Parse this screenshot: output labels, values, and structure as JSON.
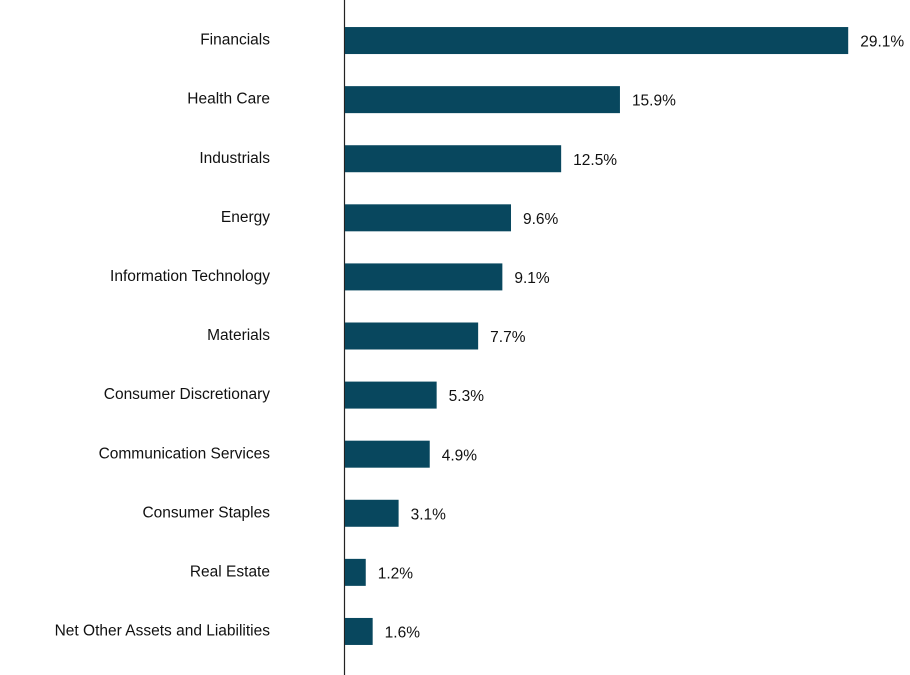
{
  "chart_data": {
    "type": "hbar",
    "categories": [
      "Financials",
      "Health Care",
      "Industrials",
      "Energy",
      "Information Technology",
      "Materials",
      "Consumer Discretionary",
      "Communication Services",
      "Consumer Staples",
      "Real Estate",
      "Net Other Assets and Liabilities"
    ],
    "values": [
      29.1,
      15.9,
      12.5,
      9.6,
      9.1,
      7.7,
      5.3,
      4.9,
      3.1,
      1.2,
      1.6
    ],
    "value_labels": [
      "29.1%",
      "15.9%",
      "12.5%",
      "9.6%",
      "9.1%",
      "7.7%",
      "5.3%",
      "4.9%",
      "3.1%",
      "1.2%",
      "1.6%"
    ],
    "color": "#08475e",
    "xlim": [
      0,
      32.5
    ]
  }
}
